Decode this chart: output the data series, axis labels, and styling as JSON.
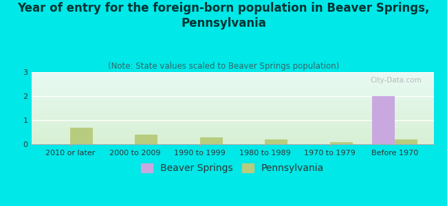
{
  "title": "Year of entry for the foreign-born population in Beaver Springs,\nPennsylvania",
  "subtitle": "(Note: State values scaled to Beaver Springs population)",
  "categories": [
    "2010 or later",
    "2000 to 2009",
    "1990 to 1999",
    "1980 to 1989",
    "1970 to 1979",
    "Before 1970"
  ],
  "beaver_springs": [
    0,
    0,
    0,
    0,
    0,
    2.0
  ],
  "pennsylvania": [
    0.7,
    0.4,
    0.3,
    0.2,
    0.1,
    0.2
  ],
  "beaver_springs_color": "#c9a8e0",
  "pennsylvania_color": "#b8cc80",
  "ylim": [
    0,
    3
  ],
  "yticks": [
    0,
    1,
    2,
    3
  ],
  "bar_width": 0.35,
  "title_fontsize": 12,
  "subtitle_fontsize": 8.5,
  "tick_fontsize": 8,
  "legend_fontsize": 10,
  "bg_color": "#00e8e8",
  "title_color": "#003333",
  "subtitle_color": "#336666",
  "watermark": "City-Data.com",
  "plot_bg_topleft": "#e8f8f8",
  "plot_bg_topright": "#f4faf0",
  "plot_bg_bottom": "#d8f0d8"
}
